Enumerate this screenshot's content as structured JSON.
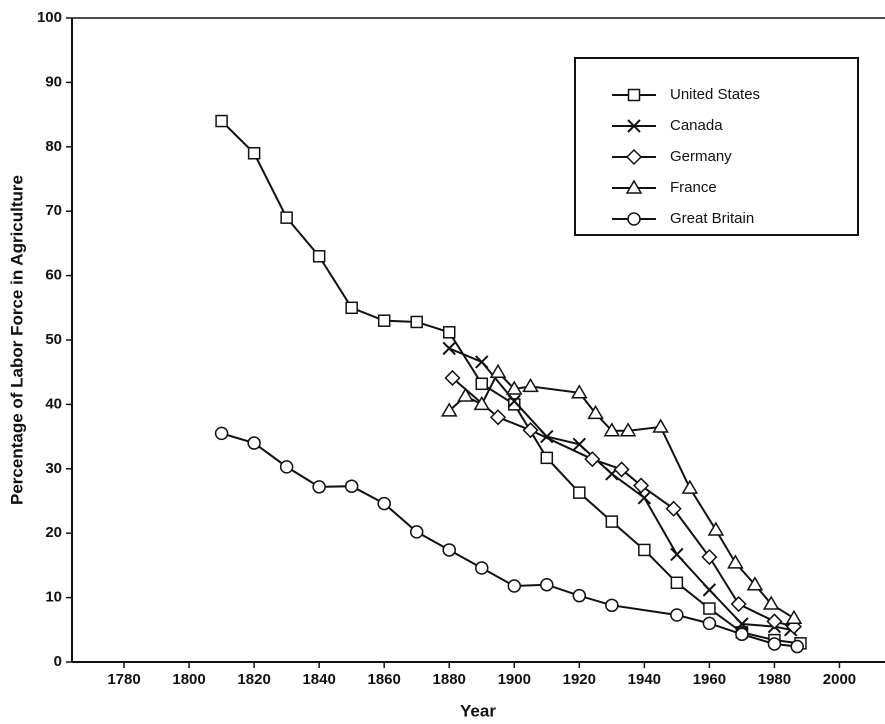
{
  "chart_data": {
    "type": "line",
    "x_label": "Year",
    "y_label": "Percentage of Labor Force in Agriculture",
    "xlim": [
      1764,
      2014
    ],
    "ylim": [
      0,
      100
    ],
    "xticks": [
      1780,
      1800,
      1820,
      1840,
      1860,
      1880,
      1900,
      1920,
      1940,
      1960,
      1980,
      2000
    ],
    "yticks": [
      0,
      10,
      20,
      30,
      40,
      50,
      60,
      70,
      80,
      90,
      100
    ],
    "legend": "upper right",
    "series": [
      {
        "name": "United States",
        "color": "#111111",
        "marker": "square",
        "x": [
          1810,
          1820,
          1830,
          1840,
          1850,
          1860,
          1870,
          1880,
          1890,
          1900,
          1910,
          1920,
          1930,
          1940,
          1950,
          1960,
          1970,
          1980,
          1988
        ],
        "values": [
          84,
          79,
          69,
          63,
          55,
          53,
          52.8,
          51.2,
          43.2,
          40,
          31.7,
          26.3,
          21.8,
          17.4,
          12.3,
          8.3,
          4.6,
          3.4,
          2.9
        ]
      },
      {
        "name": "Canada",
        "color": "#111111",
        "marker": "x",
        "x": [
          1880,
          1890,
          1900,
          1910,
          1920,
          1930,
          1940,
          1950,
          1960,
          1970,
          1980,
          1985
        ],
        "values": [
          48.7,
          46.6,
          40.5,
          35,
          33.8,
          29.2,
          25.5,
          16.7,
          11.2,
          5.9,
          5.5,
          5
        ]
      },
      {
        "name": "Germany",
        "color": "#111111",
        "marker": "diamond",
        "x": [
          1881,
          1895,
          1905,
          1924,
          1933,
          1939,
          1949,
          1960,
          1969,
          1980,
          1986
        ],
        "values": [
          44.1,
          38,
          36,
          31.5,
          29.9,
          27.4,
          23.8,
          16.3,
          9,
          6.3,
          5.5
        ]
      },
      {
        "name": "France",
        "color": "#111111",
        "marker": "triangle",
        "x": [
          1880,
          1885,
          1890,
          1895,
          1900,
          1905,
          1920,
          1925,
          1930,
          1935,
          1945,
          1954,
          1962,
          1968,
          1974,
          1979,
          1986
        ],
        "values": [
          39,
          41.3,
          40,
          45,
          42.4,
          42.8,
          41.8,
          38.6,
          35.9,
          35.9,
          36.5,
          27,
          20.5,
          15.4,
          12,
          9,
          6.8
        ]
      },
      {
        "name": "Great Britain",
        "color": "#111111",
        "marker": "circle",
        "x": [
          1810,
          1820,
          1830,
          1840,
          1850,
          1860,
          1870,
          1880,
          1890,
          1900,
          1910,
          1920,
          1930,
          1950,
          1960,
          1970,
          1980,
          1987
        ],
        "values": [
          35.5,
          34,
          30.3,
          27.2,
          27.3,
          24.6,
          20.2,
          17.4,
          14.6,
          11.8,
          12,
          10.3,
          8.8,
          7.3,
          6,
          4.3,
          2.8,
          2.4
        ]
      }
    ]
  }
}
